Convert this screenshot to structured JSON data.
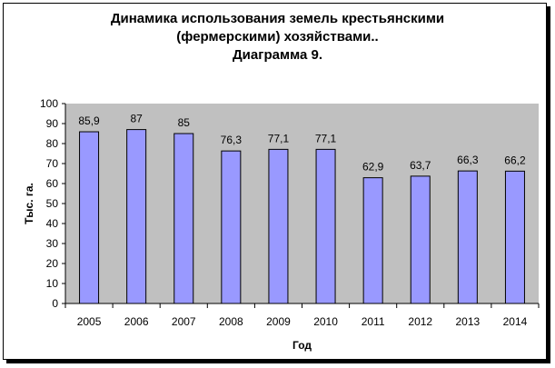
{
  "chart_data": {
    "type": "bar",
    "title_lines": [
      "Динамика использования земель крестьянскими",
      "(фермерскими) хозяйствами..",
      "Диаграмма 9."
    ],
    "xlabel": "Год",
    "ylabel": "Тыс. га.",
    "categories": [
      "2005",
      "2006",
      "2007",
      "2008",
      "2009",
      "2010",
      "2011",
      "2012",
      "2013",
      "2014"
    ],
    "values": [
      85.9,
      87,
      85,
      76.3,
      77.1,
      77.1,
      62.9,
      63.7,
      66.3,
      66.2
    ],
    "value_labels": [
      "85,9",
      "87",
      "85",
      "76,3",
      "77,1",
      "77,1",
      "62,9",
      "63,7",
      "66,3",
      "66,2"
    ],
    "ylim": [
      0,
      100
    ],
    "yticks": [
      0,
      10,
      20,
      30,
      40,
      50,
      60,
      70,
      80,
      90,
      100
    ],
    "grid": false,
    "legend": "none",
    "colors": {
      "plot_background": "#c0c0c0",
      "bar_fill": "#9999ff",
      "bar_stroke": "#000000"
    }
  }
}
